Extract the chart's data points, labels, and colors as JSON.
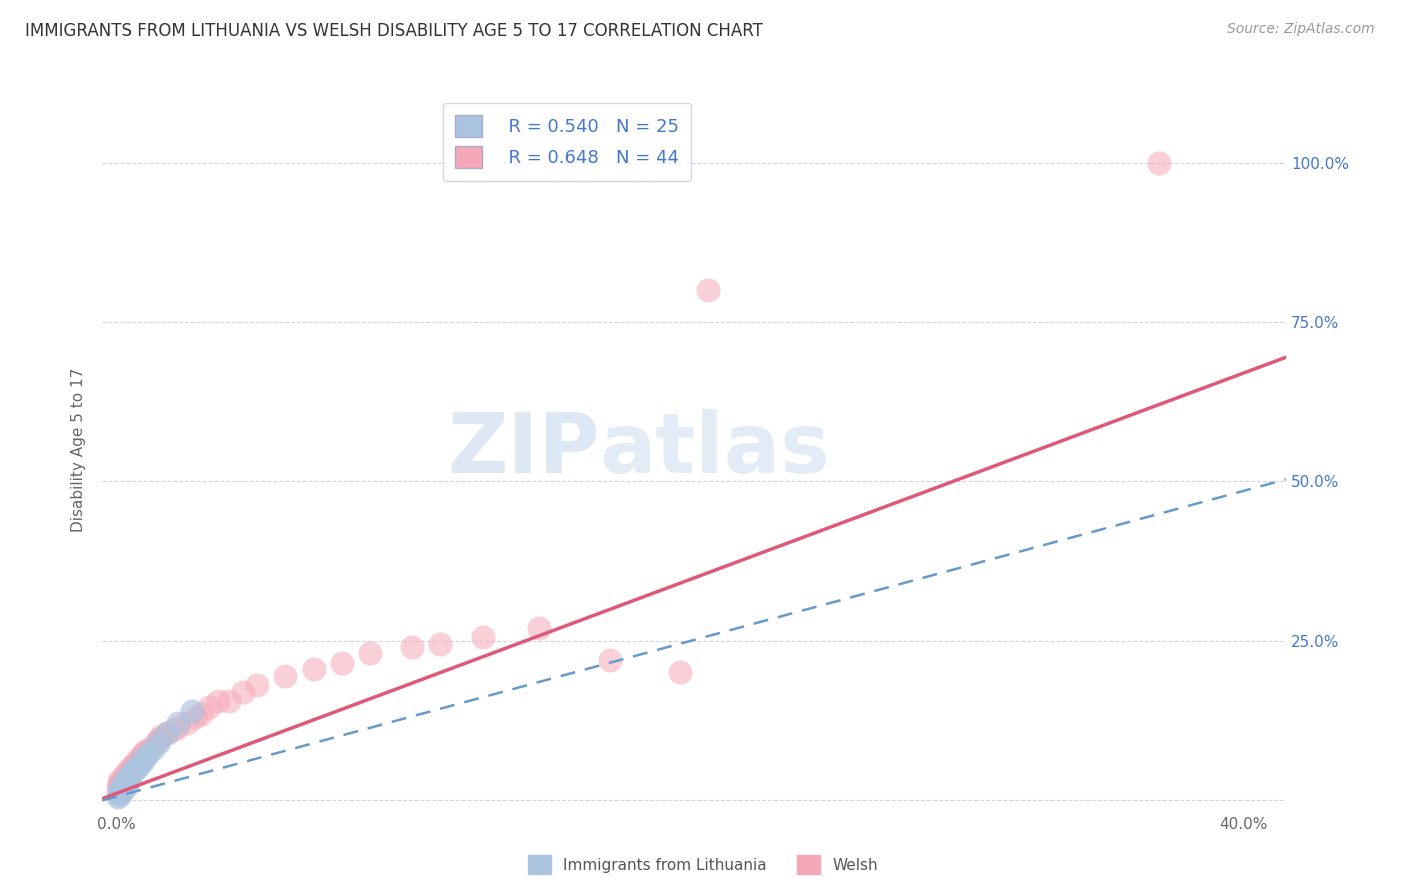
{
  "title": "IMMIGRANTS FROM LITHUANIA VS WELSH DISABILITY AGE 5 TO 17 CORRELATION CHART",
  "source": "Source: ZipAtlas.com",
  "ylabel": "Disability Age 5 to 17",
  "y_ticks": [
    0.0,
    0.25,
    0.5,
    0.75,
    1.0
  ],
  "xlim": [
    -0.005,
    0.415
  ],
  "ylim": [
    -0.02,
    1.12
  ],
  "blue_R": 0.54,
  "blue_N": 25,
  "pink_R": 0.648,
  "pink_N": 44,
  "blue_color": "#aac4e0",
  "pink_color": "#f5a8b8",
  "blue_line_color": "#6699cc",
  "pink_line_color": "#e05878",
  "grid_color": "#d0d4e8",
  "legend_label_blue": "Immigrants from Lithuania",
  "legend_label_pink": "Welsh",
  "watermark_zip": "ZIP",
  "watermark_atlas": "atlas",
  "blue_scatter_x": [
    0.0005,
    0.001,
    0.001,
    0.0015,
    0.002,
    0.002,
    0.002,
    0.003,
    0.003,
    0.003,
    0.004,
    0.004,
    0.005,
    0.005,
    0.006,
    0.007,
    0.008,
    0.009,
    0.01,
    0.011,
    0.013,
    0.015,
    0.018,
    0.022,
    0.027
  ],
  "blue_scatter_y": [
    0.005,
    0.008,
    0.012,
    0.01,
    0.015,
    0.018,
    0.022,
    0.018,
    0.025,
    0.03,
    0.028,
    0.035,
    0.032,
    0.04,
    0.045,
    0.048,
    0.055,
    0.06,
    0.065,
    0.07,
    0.08,
    0.09,
    0.105,
    0.12,
    0.14
  ],
  "pink_scatter_x": [
    0.0005,
    0.001,
    0.001,
    0.002,
    0.002,
    0.003,
    0.003,
    0.004,
    0.004,
    0.005,
    0.005,
    0.006,
    0.007,
    0.008,
    0.009,
    0.01,
    0.011,
    0.012,
    0.014,
    0.015,
    0.016,
    0.018,
    0.02,
    0.022,
    0.025,
    0.028,
    0.03,
    0.033,
    0.036,
    0.04,
    0.045,
    0.05,
    0.06,
    0.07,
    0.08,
    0.09,
    0.105,
    0.115,
    0.13,
    0.15,
    0.175,
    0.2,
    0.21,
    0.37
  ],
  "pink_scatter_y": [
    0.02,
    0.025,
    0.03,
    0.025,
    0.035,
    0.03,
    0.04,
    0.035,
    0.045,
    0.04,
    0.05,
    0.055,
    0.06,
    0.065,
    0.07,
    0.075,
    0.078,
    0.08,
    0.09,
    0.095,
    0.1,
    0.105,
    0.11,
    0.115,
    0.12,
    0.13,
    0.135,
    0.145,
    0.155,
    0.155,
    0.17,
    0.18,
    0.195,
    0.205,
    0.215,
    0.23,
    0.24,
    0.245,
    0.255,
    0.27,
    0.22,
    0.2,
    0.8,
    1.0
  ],
  "blue_intercept": 0.005,
  "blue_slope": 1.2,
  "pink_intercept": 0.01,
  "pink_slope": 1.65
}
